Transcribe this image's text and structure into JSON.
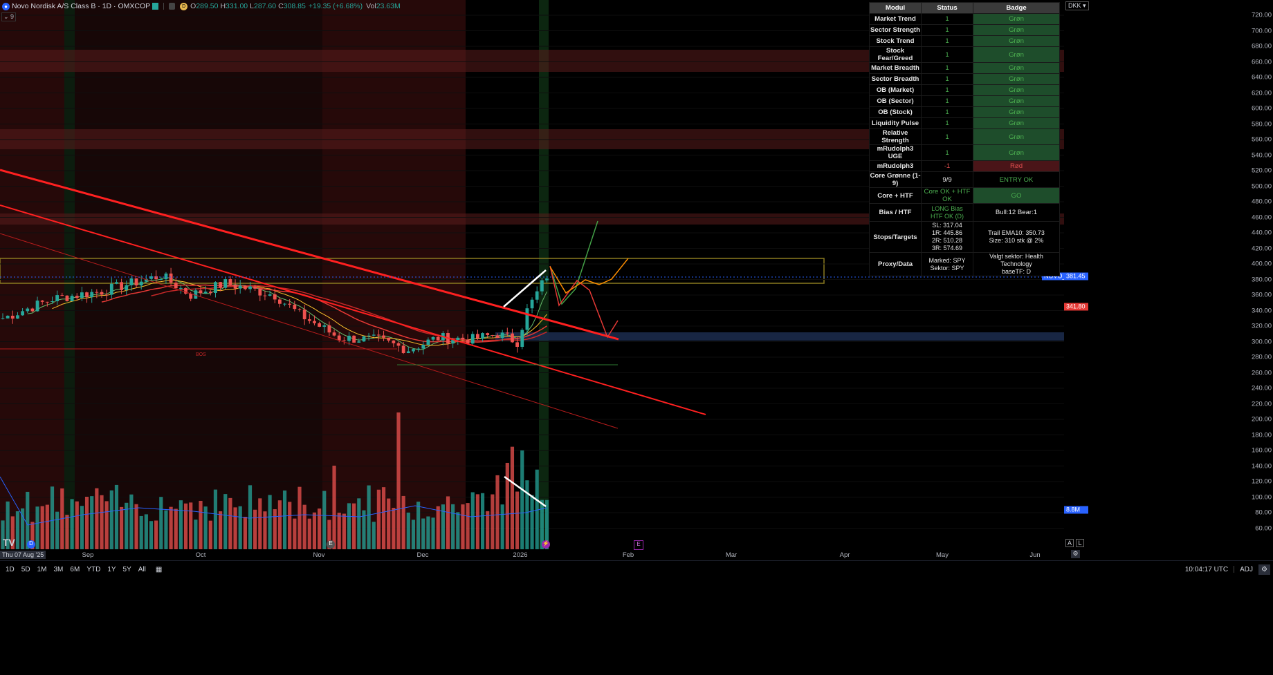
{
  "header": {
    "symbol": "Novo Nordisk A/S Class B · 1D · OMXCOP",
    "ohlc": [
      {
        "k": "O",
        "v": "289.50"
      },
      {
        "k": "H",
        "v": "331.00"
      },
      {
        "k": "L",
        "v": "287.60"
      },
      {
        "k": "C",
        "v": "308.85"
      }
    ],
    "change": "+19.35 (+6.68%)",
    "vol_label": "Vol",
    "vol": "23.63M",
    "d_badge": "D",
    "collapse_label": "9"
  },
  "colors": {
    "up": "#26a69a",
    "down": "#ef5350",
    "trendline": "#ff2020",
    "panel_green": "#1e4d2b",
    "panel_red": "#4a1518",
    "accent_blue": "#2962ff"
  },
  "price_axis": {
    "currency": "DKK",
    "ticks": [
      "720.00",
      "700.00",
      "680.00",
      "660.00",
      "640.00",
      "620.00",
      "600.00",
      "580.00",
      "560.00",
      "540.00",
      "520.00",
      "500.00",
      "480.00",
      "460.00",
      "440.00",
      "420.00",
      "400.00",
      "380.00",
      "360.00",
      "340.00",
      "320.00",
      "300.00",
      "280.00",
      "260.00",
      "240.00",
      "220.00",
      "200.00",
      "180.00",
      "160.00",
      "140.00",
      "120.00",
      "100.00",
      "80.00",
      "60.00"
    ],
    "last_symbol": "NOVO_B",
    "last_price": "381.45",
    "red_level": "341.80",
    "vol_level": "8.8M",
    "auto": "A",
    "log": "L"
  },
  "time_axis": {
    "start": "Thu 07 Aug '25",
    "ticks": [
      "Sep",
      "Oct",
      "Nov",
      "Dec",
      "2026",
      "Feb",
      "Mar",
      "Apr",
      "May",
      "Jun"
    ]
  },
  "annotations": {
    "bos": "BOS"
  },
  "bottom_bar": {
    "ranges": [
      "1D",
      "5D",
      "1M",
      "3M",
      "6M",
      "YTD",
      "1Y",
      "5Y",
      "All"
    ],
    "time": "10:04:17 UTC",
    "adj": "ADJ"
  },
  "table": {
    "headers": [
      "Modul",
      "Status",
      "Badge"
    ],
    "rows": [
      {
        "modul": "Market Trend",
        "status": "1",
        "badge": "Grøn",
        "tone": "g"
      },
      {
        "modul": "Sector Strength",
        "status": "1",
        "badge": "Grøn",
        "tone": "g"
      },
      {
        "modul": "Stock Trend",
        "status": "1",
        "badge": "Grøn",
        "tone": "g"
      },
      {
        "modul": "Stock Fear/Greed",
        "status": "1",
        "badge": "Grøn",
        "tone": "g"
      },
      {
        "modul": "Market Breadth",
        "status": "1",
        "badge": "Grøn",
        "tone": "g"
      },
      {
        "modul": "Sector Breadth",
        "status": "1",
        "badge": "Grøn",
        "tone": "g"
      },
      {
        "modul": "OB (Market)",
        "status": "1",
        "badge": "Grøn",
        "tone": "g"
      },
      {
        "modul": "OB (Sector)",
        "status": "1",
        "badge": "Grøn",
        "tone": "g"
      },
      {
        "modul": "OB (Stock)",
        "status": "1",
        "badge": "Grøn",
        "tone": "g"
      },
      {
        "modul": "Liquidity Pulse",
        "status": "1",
        "badge": "Grøn",
        "tone": "g"
      },
      {
        "modul": "Relative Strength",
        "status": "1",
        "badge": "Grøn",
        "tone": "g"
      },
      {
        "modul": "mRudolph3 UGE",
        "status": "1",
        "badge": "Grøn",
        "tone": "g"
      },
      {
        "modul": "mRudolph3",
        "status": "-1",
        "badge": "Rød",
        "tone": "r"
      }
    ],
    "core_green": {
      "label": "Core Grønne (1-9)",
      "status": "9/9",
      "badge": "ENTRY OK"
    },
    "core_htf": {
      "label": "Core + HTF",
      "status": "Core OK + HTF OK",
      "badge": "GO"
    },
    "bias": {
      "label": "Bias / HTF",
      "status_1": "LONG Bias",
      "status_2": "HTF OK (D)",
      "badge": "Bull:12 Bear:1"
    },
    "stops": {
      "label": "Stops/Targets",
      "lines": [
        "SL: 317.04",
        "1R: 445.86",
        "2R: 510.28",
        "3R: 574.69"
      ],
      "badge_1": "Trail EMA10: 350.73",
      "badge_2": "Size: 310 stk @ 2%"
    },
    "proxy": {
      "label": "Proxy/Data",
      "status_1": "Marked: SPY",
      "status_2": "Sektor: SPY",
      "badge_1": "Valgt sektor: Health Technology",
      "badge_2": "baseTF: D"
    }
  }
}
